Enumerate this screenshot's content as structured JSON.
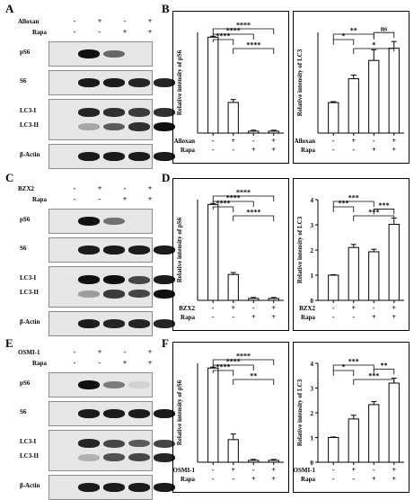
{
  "panel_letters": {
    "a": "A",
    "b": "B",
    "c": "C",
    "d": "D",
    "e": "E",
    "f": "F"
  },
  "blot_panels": [
    {
      "letter": "A",
      "conditions": [
        {
          "name": "Alloxan",
          "signs": [
            "-",
            "+",
            "-",
            "+"
          ]
        },
        {
          "name": "Rapa",
          "signs": [
            "-",
            "-",
            "+",
            "+"
          ]
        }
      ],
      "blots": [
        {
          "labels": [
            "pS6"
          ],
          "bands": [
            [
              0.95,
              0.55,
              0,
              0
            ]
          ]
        },
        {
          "labels": [
            "S6"
          ],
          "bands": [
            [
              0.9,
              0.9,
              0.85,
              0.85
            ]
          ]
        },
        {
          "labels": [
            "LC3-I",
            "LC3-II"
          ],
          "bands": [
            [
              0.85,
              0.8,
              0.75,
              0.8
            ],
            [
              0.25,
              0.6,
              0.8,
              0.95
            ]
          ]
        },
        {
          "labels": [
            "β-Actin"
          ],
          "bands": [
            [
              0.9,
              0.9,
              0.9,
              0.9
            ]
          ]
        }
      ]
    },
    {
      "letter": "C",
      "conditions": [
        {
          "name": "BZX2",
          "signs": [
            "-",
            "+",
            "-",
            "+"
          ]
        },
        {
          "name": "Rapa",
          "signs": [
            "-",
            "-",
            "+",
            "+"
          ]
        }
      ],
      "blots": [
        {
          "labels": [
            "pS6"
          ],
          "bands": [
            [
              0.95,
              0.5,
              0,
              0
            ]
          ]
        },
        {
          "labels": [
            "S6"
          ],
          "bands": [
            [
              0.9,
              0.9,
              0.9,
              0.9
            ]
          ]
        },
        {
          "labels": [
            "LC3-I",
            "LC3-II"
          ],
          "bands": [
            [
              0.95,
              0.95,
              0.7,
              0.9
            ],
            [
              0.3,
              0.75,
              0.7,
              0.95
            ]
          ]
        },
        {
          "labels": [
            "β-Actin"
          ],
          "bands": [
            [
              0.9,
              0.85,
              0.85,
              0.85
            ]
          ]
        }
      ]
    },
    {
      "letter": "E",
      "conditions": [
        {
          "name": "OSMI-1",
          "signs": [
            "-",
            "+",
            "-",
            "+"
          ]
        },
        {
          "name": "Rapa",
          "signs": [
            "-",
            "-",
            "+",
            "+"
          ]
        }
      ],
      "blots": [
        {
          "labels": [
            "pS6"
          ],
          "bands": [
            [
              0.95,
              0.45,
              0.05,
              0
            ]
          ]
        },
        {
          "labels": [
            "S6"
          ],
          "bands": [
            [
              0.9,
              0.9,
              0.9,
              0.9
            ]
          ]
        },
        {
          "labels": [
            "LC3-I",
            "LC3-II"
          ],
          "bands": [
            [
              0.85,
              0.7,
              0.6,
              0.7
            ],
            [
              0.2,
              0.65,
              0.7,
              0.85
            ]
          ]
        },
        {
          "labels": [
            "β-Actin"
          ],
          "bands": [
            [
              0.9,
              0.9,
              0.9,
              0.9
            ]
          ]
        }
      ]
    }
  ],
  "chart_data": [
    {
      "type": "bar",
      "ylabel": "Relative intensity of pS6",
      "ylim": [
        0,
        1.05
      ],
      "yticks": [],
      "values": [
        1.0,
        0.32,
        0.02,
        0.02
      ],
      "errors": [
        0.01,
        0.03,
        0.01,
        0.01
      ],
      "conditions": [
        {
          "name": "Alloxan",
          "signs": [
            "-",
            "+",
            "-",
            "+"
          ]
        },
        {
          "name": "Rapa",
          "signs": [
            "-",
            "-",
            "+",
            "+"
          ]
        }
      ],
      "significance": [
        {
          "from": 0,
          "to": 1,
          "label": "****"
        },
        {
          "from": 0,
          "to": 2,
          "label": "****"
        },
        {
          "from": 0,
          "to": 3,
          "label": "****"
        },
        {
          "from": 1,
          "to": 3,
          "label": "****"
        }
      ]
    },
    {
      "type": "bar",
      "ylabel": "Relative intensity of LC3",
      "ylim": [
        0,
        3.3
      ],
      "yticks": [],
      "values": [
        1.0,
        1.78,
        2.38,
        2.78
      ],
      "errors": [
        0.03,
        0.12,
        0.35,
        0.22
      ],
      "conditions": [
        {
          "name": "Alloxan",
          "signs": [
            "-",
            "+",
            "-",
            "+"
          ]
        },
        {
          "name": "Rapa",
          "signs": [
            "-",
            "-",
            "+",
            "+"
          ]
        }
      ],
      "significance": [
        {
          "from": 0,
          "to": 1,
          "label": "*"
        },
        {
          "from": 0,
          "to": 2,
          "label": "**"
        },
        {
          "from": 2,
          "to": 3,
          "label": "ns"
        },
        {
          "from": 1,
          "to": 3,
          "label": "*"
        }
      ]
    },
    {
      "type": "bar",
      "ylabel": "Relative intensity of pS6",
      "ylim": [
        0,
        1.05
      ],
      "yticks": [],
      "values": [
        1.0,
        0.27,
        0.02,
        0.02
      ],
      "errors": [
        0.01,
        0.02,
        0.01,
        0.01
      ],
      "conditions": [
        {
          "name": "BZX2",
          "signs": [
            "-",
            "+",
            "-",
            "+"
          ]
        },
        {
          "name": "Rapa",
          "signs": [
            "-",
            "-",
            "+",
            "+"
          ]
        }
      ],
      "significance": [
        {
          "from": 0,
          "to": 1,
          "label": "****"
        },
        {
          "from": 0,
          "to": 2,
          "label": "****"
        },
        {
          "from": 0,
          "to": 3,
          "label": "****"
        },
        {
          "from": 1,
          "to": 3,
          "label": "****"
        }
      ]
    },
    {
      "type": "bar",
      "ylabel": "Relative intensity of LC3",
      "ylim": [
        0,
        4
      ],
      "yticks": [
        0,
        1,
        2,
        3,
        4
      ],
      "values": [
        1.0,
        2.1,
        1.93,
        3.02
      ],
      "errors": [
        0.02,
        0.12,
        0.1,
        0.25
      ],
      "conditions": [
        {
          "name": "BZX2",
          "signs": [
            "-",
            "+",
            "-",
            "+"
          ]
        },
        {
          "name": "Rapa",
          "signs": [
            "-",
            "-",
            "+",
            "+"
          ]
        }
      ],
      "significance": [
        {
          "from": 0,
          "to": 1,
          "label": "***"
        },
        {
          "from": 0,
          "to": 2,
          "label": "***"
        },
        {
          "from": 2,
          "to": 3,
          "label": "***"
        },
        {
          "from": 1,
          "to": 3,
          "label": "***"
        }
      ]
    },
    {
      "type": "bar",
      "ylabel": "Relative intensity of pS6",
      "ylim": [
        0,
        1.05
      ],
      "yticks": [],
      "values": [
        1.0,
        0.24,
        0.02,
        0.02
      ],
      "errors": [
        0.01,
        0.06,
        0.01,
        0.01
      ],
      "conditions": [
        {
          "name": "OSMI-1",
          "signs": [
            "-",
            "+",
            "-",
            "+"
          ]
        },
        {
          "name": "Rapa",
          "signs": [
            "-",
            "-",
            "+",
            "+"
          ]
        }
      ],
      "significance": [
        {
          "from": 0,
          "to": 1,
          "label": "****"
        },
        {
          "from": 0,
          "to": 2,
          "label": "****"
        },
        {
          "from": 0,
          "to": 3,
          "label": "****"
        },
        {
          "from": 1,
          "to": 3,
          "label": "**"
        }
      ]
    },
    {
      "type": "bar",
      "ylabel": "Relative intensity of LC3",
      "ylim": [
        0,
        4
      ],
      "yticks": [
        0,
        1,
        2,
        3,
        4
      ],
      "values": [
        1.0,
        1.75,
        2.33,
        3.2
      ],
      "errors": [
        0.02,
        0.15,
        0.12,
        0.2
      ],
      "conditions": [
        {
          "name": "OSMI-1",
          "signs": [
            "-",
            "+",
            "-",
            "+"
          ]
        },
        {
          "name": "Rapa",
          "signs": [
            "-",
            "-",
            "+",
            "+"
          ]
        }
      ],
      "significance": [
        {
          "from": 0,
          "to": 1,
          "label": "*"
        },
        {
          "from": 0,
          "to": 2,
          "label": "***"
        },
        {
          "from": 2,
          "to": 3,
          "label": "**"
        },
        {
          "from": 1,
          "to": 3,
          "label": "***"
        }
      ]
    }
  ]
}
